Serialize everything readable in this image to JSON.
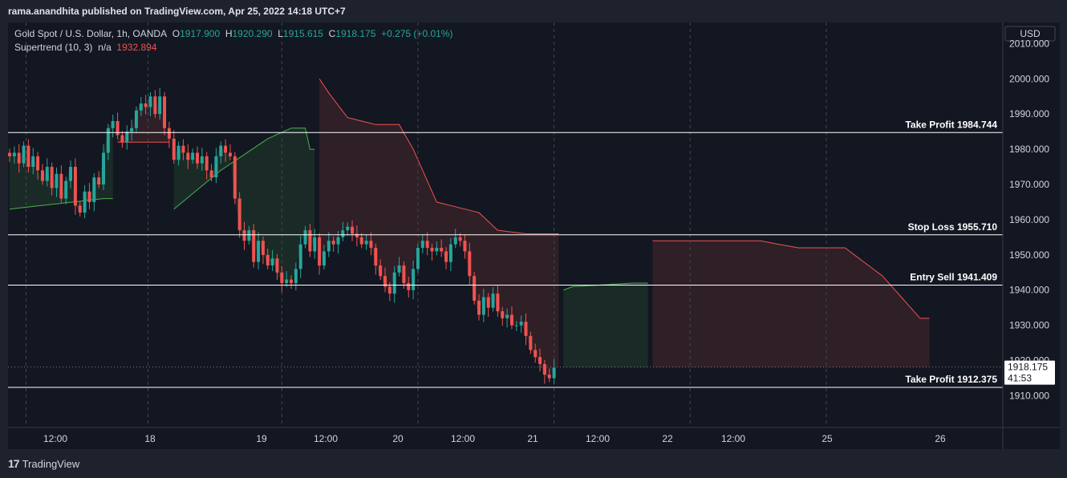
{
  "header": {
    "published": "rama.anandhita published on TradingView.com, Apr 25, 2022 14:18 UTC+7"
  },
  "legend": {
    "symbol": "Gold Spot / U.S. Dollar, 1h, OANDA",
    "o_label": "O",
    "o": "1917.900",
    "h_label": "H",
    "h": "1920.290",
    "l_label": "L",
    "l": "1915.615",
    "c_label": "C",
    "c": "1918.175",
    "change": "+0.275 (+0.01%)",
    "indicator": "Supertrend (10, 3)",
    "indicator_na": "n/a",
    "indicator_value": "1932.894"
  },
  "currency": "USD",
  "footer": {
    "brand": "TradingView",
    "logo_icon": "tradingview-logo-icon"
  },
  "price_badge": {
    "price": "1918.175",
    "countdown": "41:53"
  },
  "colors": {
    "up": "#26a69a",
    "down": "#ef5350",
    "bg": "#131722",
    "line": "#ffffff"
  },
  "chart_data": {
    "type": "candlestick",
    "title": "Gold Spot / U.S. Dollar, 1h, OANDA",
    "ylim": [
      1901,
      2016
    ],
    "y_ticks": [
      "2010.000",
      "2000.000",
      "1990.000",
      "1980.000",
      "1970.000",
      "1960.000",
      "1950.000",
      "1940.000",
      "1930.000",
      "1920.000",
      "1910.000"
    ],
    "x_ticks": [
      "12:00",
      "18",
      "19",
      "12:00",
      "20",
      "12:00",
      "21",
      "12:00",
      "22",
      "12:00",
      "25",
      "26"
    ],
    "levels": [
      {
        "label": "Take Profit 1984.744",
        "value": 1984.744
      },
      {
        "label": "Stop Loss 1955.710",
        "value": 1955.71
      },
      {
        "label": "Entry Sell 1941.409",
        "value": 1941.409
      },
      {
        "label": "Take Profit 1912.375",
        "value": 1912.375
      }
    ],
    "day_separators": [
      "18",
      "19",
      "20",
      "21",
      "22",
      "25"
    ],
    "close_path": [
      1978,
      1979,
      1976,
      1981,
      1975,
      1978,
      1974,
      1971,
      1975,
      1969,
      1973,
      1966,
      1971,
      1975,
      1964,
      1962,
      1968,
      1965,
      1972,
      1970,
      1979,
      1986,
      1988,
      1984,
      1982,
      1985,
      1986,
      1991,
      1993,
      1992,
      1995,
      1990,
      1995,
      1986,
      1983,
      1977,
      1981,
      1979,
      1977,
      1979,
      1976,
      1978,
      1974,
      1972,
      1978,
      1981,
      1979,
      1978,
      1966,
      1957,
      1954,
      1957,
      1948,
      1954,
      1950,
      1947,
      1949,
      1945,
      1942,
      1943,
      1942,
      1946,
      1953,
      1957,
      1951,
      1955,
      1947,
      1951,
      1954,
      1953,
      1955,
      1957,
      1958,
      1956,
      1955,
      1953,
      1954,
      1952,
      1947,
      1944,
      1941,
      1939,
      1945,
      1947,
      1942,
      1940,
      1946,
      1952,
      1954,
      1952,
      1951,
      1952,
      1951,
      1948,
      1953,
      1955,
      1954,
      1951,
      1944,
      1937,
      1933,
      1938,
      1935,
      1939,
      1934,
      1932,
      1933,
      1930,
      1930,
      1931,
      1927,
      1923,
      1921,
      1919,
      1916,
      1915,
      1918
    ],
    "supertrend": [
      {
        "trend": "up",
        "values": [
          [
            0,
            1963
          ],
          [
            20,
            1966
          ],
          [
            22,
            1966
          ]
        ]
      },
      {
        "trend": "down",
        "values": [
          [
            23,
            1982
          ],
          [
            34,
            1982
          ]
        ]
      },
      {
        "trend": "up",
        "values": [
          [
            35,
            1963
          ],
          [
            45,
            1974
          ],
          [
            55,
            1983
          ],
          [
            60,
            1986
          ],
          [
            63,
            1986
          ],
          [
            64,
            1980
          ],
          [
            65,
            1980
          ]
        ]
      },
      {
        "trend": "down",
        "values": [
          [
            66,
            2000
          ],
          [
            68,
            1996
          ],
          [
            72,
            1989
          ],
          [
            78,
            1987
          ],
          [
            83,
            1987
          ],
          [
            86,
            1980
          ],
          [
            91,
            1965
          ],
          [
            100,
            1962
          ],
          [
            104,
            1957
          ],
          [
            110,
            1956
          ],
          [
            117,
            1956
          ]
        ]
      },
      {
        "trend": "up",
        "values": [
          [
            118,
            1940
          ],
          [
            120,
            1941
          ],
          [
            133,
            1942
          ],
          [
            136,
            1942
          ]
        ]
      },
      {
        "trend": "down",
        "values": [
          [
            137,
            1954
          ],
          [
            160,
            1954
          ],
          [
            168,
            1952
          ],
          [
            178,
            1952
          ],
          [
            186,
            1944
          ],
          [
            194,
            1932
          ],
          [
            196,
            1932
          ]
        ]
      }
    ]
  }
}
